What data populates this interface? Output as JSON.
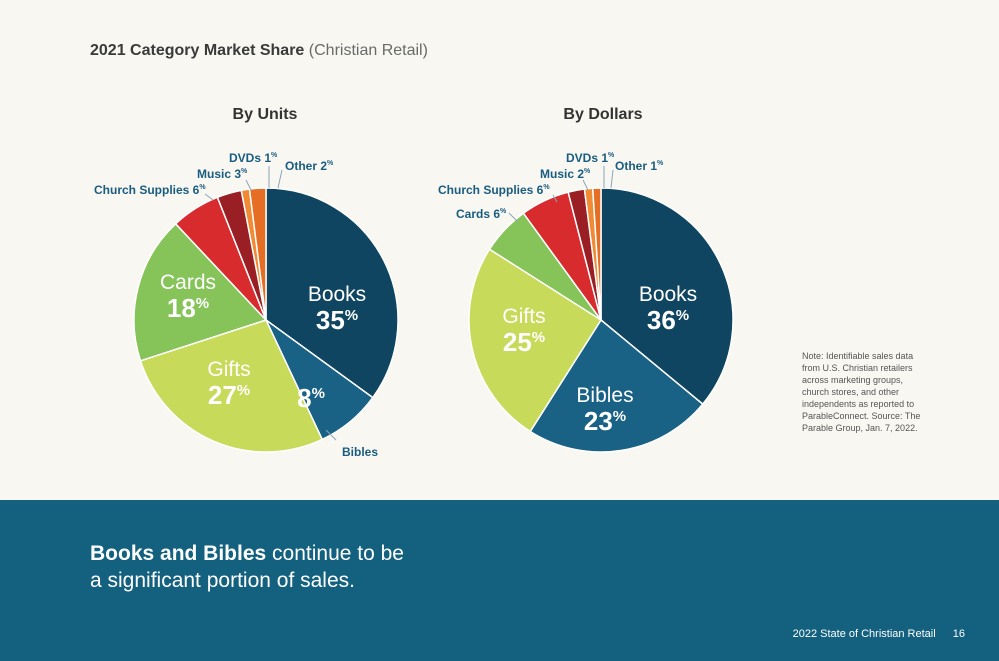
{
  "page": {
    "title_bold": "2021 Category Market Share",
    "title_sub": "(Christian Retail)",
    "note": "Note: Identifiable sales data from U.S. Christian retailers across marketing groups, church stores, and other independents as reported to ParableConnect. Source: The Parable Group, Jan. 7, 2022.",
    "headline_bold": "Books and Bibles",
    "headline_rest": " continue to be",
    "headline_line2": "a significant portion of sales.",
    "footer_label": "2022 State of Christian Retail",
    "page_number": "16"
  },
  "colors": {
    "books": "#0f4560",
    "bibles": "#1a6186",
    "gifts": "#c8da5a",
    "cards": "#86c45a",
    "church_supplies": "#d72b2e",
    "music": "#9a1f24",
    "dvds": "#f08a34",
    "other": "#e66e24"
  },
  "chart_data": [
    {
      "type": "pie",
      "title": "By Units",
      "slices": [
        {
          "key": "books",
          "label": "Books",
          "value": 35,
          "display": "35%"
        },
        {
          "key": "bibles",
          "label": "Bibles",
          "value": 8,
          "display": "8%"
        },
        {
          "key": "gifts",
          "label": "Gifts",
          "value": 27,
          "display": "27%"
        },
        {
          "key": "cards",
          "label": "Cards",
          "value": 18,
          "display": "18%"
        },
        {
          "key": "church_supplies",
          "label": "Church Supplies",
          "value": 6,
          "display": "6%"
        },
        {
          "key": "music",
          "label": "Music",
          "value": 3,
          "display": "3%"
        },
        {
          "key": "dvds",
          "label": "DVDs",
          "value": 1,
          "display": "1%"
        },
        {
          "key": "other",
          "label": "Other",
          "value": 2,
          "display": "2%"
        }
      ]
    },
    {
      "type": "pie",
      "title": "By Dollars",
      "slices": [
        {
          "key": "books",
          "label": "Books",
          "value": 36,
          "display": "36%"
        },
        {
          "key": "bibles",
          "label": "Bibles",
          "value": 23,
          "display": "23%"
        },
        {
          "key": "gifts",
          "label": "Gifts",
          "value": 25,
          "display": "25%"
        },
        {
          "key": "cards",
          "label": "Cards",
          "value": 6,
          "display": "6%"
        },
        {
          "key": "church_supplies",
          "label": "Church Supplies",
          "value": 6,
          "display": "6%"
        },
        {
          "key": "music",
          "label": "Music",
          "value": 2,
          "display": "2%"
        },
        {
          "key": "dvds",
          "label": "DVDs",
          "value": 1,
          "display": "1%"
        },
        {
          "key": "other",
          "label": "Other",
          "value": 1,
          "display": "1%"
        }
      ]
    }
  ]
}
